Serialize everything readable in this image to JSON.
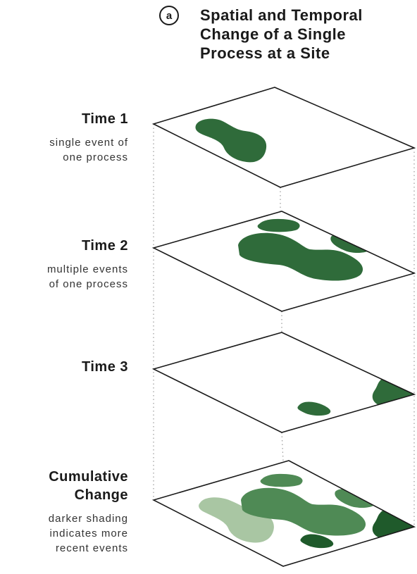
{
  "header": {
    "badge": "a",
    "title_lines": [
      "Spatial and Temporal",
      "Change of a Single",
      "Process at a Site"
    ]
  },
  "panels": [
    {
      "heading_lines": [
        "Time 1"
      ],
      "description_lines": [
        "single event of",
        "one process"
      ]
    },
    {
      "heading_lines": [
        "Time 2"
      ],
      "description_lines": [
        "multiple events",
        "of one process"
      ]
    },
    {
      "heading_lines": [
        "Time 3"
      ],
      "description_lines": []
    },
    {
      "heading_lines": [
        "Cumulative",
        "Change"
      ],
      "description_lines": [
        "darker shading",
        "indicates more",
        "recent events"
      ]
    }
  ],
  "colors": {
    "time1": "#2f6b3a",
    "time2": "#2f6b3a",
    "time3": "#2f6b3a",
    "cum_time1": "#a9c6a3",
    "cum_time2": "#4f8a55",
    "cum_time3": "#1f5a2b"
  }
}
